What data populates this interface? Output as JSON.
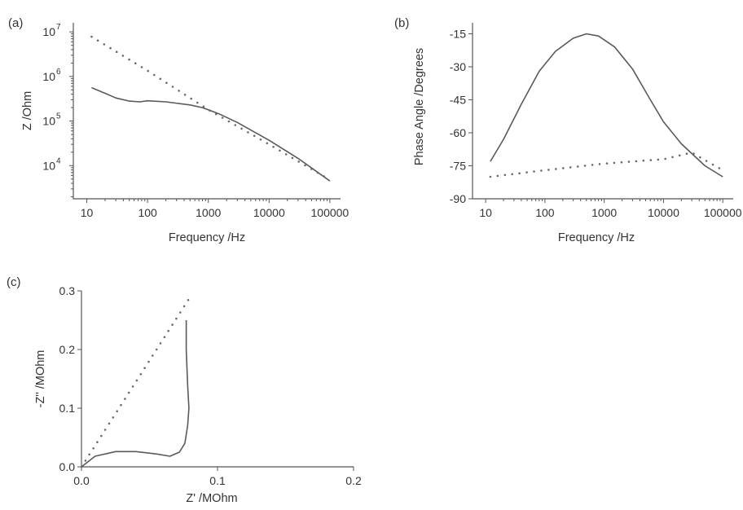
{
  "chart_data": [
    {
      "panel": "(a)",
      "type": "line",
      "xlabel": "Frequency /Hz",
      "ylabel": "Z /Ohm",
      "x_scale": "log",
      "y_scale": "log",
      "xlim": [
        6,
        150000
      ],
      "ylim": [
        1800,
        16000000
      ],
      "x_ticks": [
        {
          "value": 10,
          "label": "10"
        },
        {
          "value": 100,
          "label": "100"
        },
        {
          "value": 1000,
          "label": "1000"
        },
        {
          "value": 10000,
          "label": "10000"
        },
        {
          "value": 100000,
          "label": "100000"
        }
      ],
      "y_ticks": [
        {
          "value": 10000,
          "base": "10",
          "exp": "4"
        },
        {
          "value": 100000,
          "base": "10",
          "exp": "5"
        },
        {
          "value": 1000000,
          "base": "10",
          "exp": "6"
        },
        {
          "value": 10000000,
          "base": "10",
          "exp": "7"
        }
      ],
      "series": [
        {
          "style": "solid",
          "x": [
            12,
            20,
            30,
            50,
            75,
            100,
            200,
            500,
            800,
            1500,
            3000,
            10000,
            30000,
            100000
          ],
          "y": [
            560000,
            420000,
            330000,
            280000,
            270000,
            285000,
            270000,
            230000,
            200000,
            145000,
            93000,
            37000,
            14500,
            4500
          ]
        },
        {
          "style": "dotted",
          "x": [
            12,
            100,
            1000,
            10000,
            100000
          ],
          "y": [
            7800000,
            1350000,
            180000,
            30000,
            4800
          ]
        }
      ]
    },
    {
      "panel": "(b)",
      "type": "line",
      "xlabel": "Frequency /Hz",
      "ylabel": "Phase Angle /Degrees",
      "x_scale": "log",
      "xlim": [
        6,
        150000
      ],
      "ylim": [
        -90,
        -10
      ],
      "x_ticks": [
        {
          "value": 10,
          "label": "10"
        },
        {
          "value": 100,
          "label": "100"
        },
        {
          "value": 1000,
          "label": "1000"
        },
        {
          "value": 10000,
          "label": "10000"
        },
        {
          "value": 100000,
          "label": "100000"
        }
      ],
      "y_ticks": [
        {
          "value": -15,
          "label": "-15"
        },
        {
          "value": -30,
          "label": "-30"
        },
        {
          "value": -45,
          "label": "-45"
        },
        {
          "value": -60,
          "label": "-60"
        },
        {
          "value": -75,
          "label": "-75"
        },
        {
          "value": -90,
          "label": "-90"
        }
      ],
      "series": [
        {
          "style": "solid",
          "x": [
            12,
            20,
            40,
            80,
            150,
            300,
            500,
            800,
            1500,
            3000,
            6000,
            10000,
            20000,
            50000,
            100000
          ],
          "y": [
            -73,
            -63,
            -47,
            -32,
            -23,
            -17,
            -15,
            -16,
            -21,
            -31,
            -45,
            -55,
            -65,
            -75,
            -80
          ]
        },
        {
          "style": "dotted",
          "x": [
            12,
            100,
            1000,
            10000,
            30000,
            100000
          ],
          "y": [
            -80,
            -77,
            -74,
            -72,
            -69,
            -77
          ]
        }
      ]
    },
    {
      "panel": "(c)",
      "type": "line",
      "xlabel": "Z' /MOhm",
      "ylabel": "-Z'' /MOhm",
      "xlim": [
        0,
        0.2
      ],
      "ylim": [
        0,
        0.3
      ],
      "x_ticks": [
        {
          "value": 0,
          "label": "0.0"
        },
        {
          "value": 0.1,
          "label": "0.1"
        },
        {
          "value": 0.2,
          "label": "0.2"
        }
      ],
      "y_ticks": [
        {
          "value": 0,
          "label": "0.0"
        },
        {
          "value": 0.1,
          "label": "0.1"
        },
        {
          "value": 0.2,
          "label": "0.2"
        },
        {
          "value": 0.3,
          "label": "0.3"
        }
      ],
      "series": [
        {
          "style": "solid",
          "x": [
            0.0,
            0.01,
            0.025,
            0.04,
            0.055,
            0.065,
            0.072,
            0.076,
            0.078,
            0.079,
            0.078,
            0.077,
            0.077
          ],
          "y": [
            0.0,
            0.018,
            0.026,
            0.026,
            0.022,
            0.018,
            0.025,
            0.04,
            0.07,
            0.1,
            0.14,
            0.2,
            0.25
          ]
        },
        {
          "style": "dotted",
          "x": [
            0.0,
            0.08
          ],
          "y": [
            0.0,
            0.29
          ]
        }
      ]
    }
  ]
}
